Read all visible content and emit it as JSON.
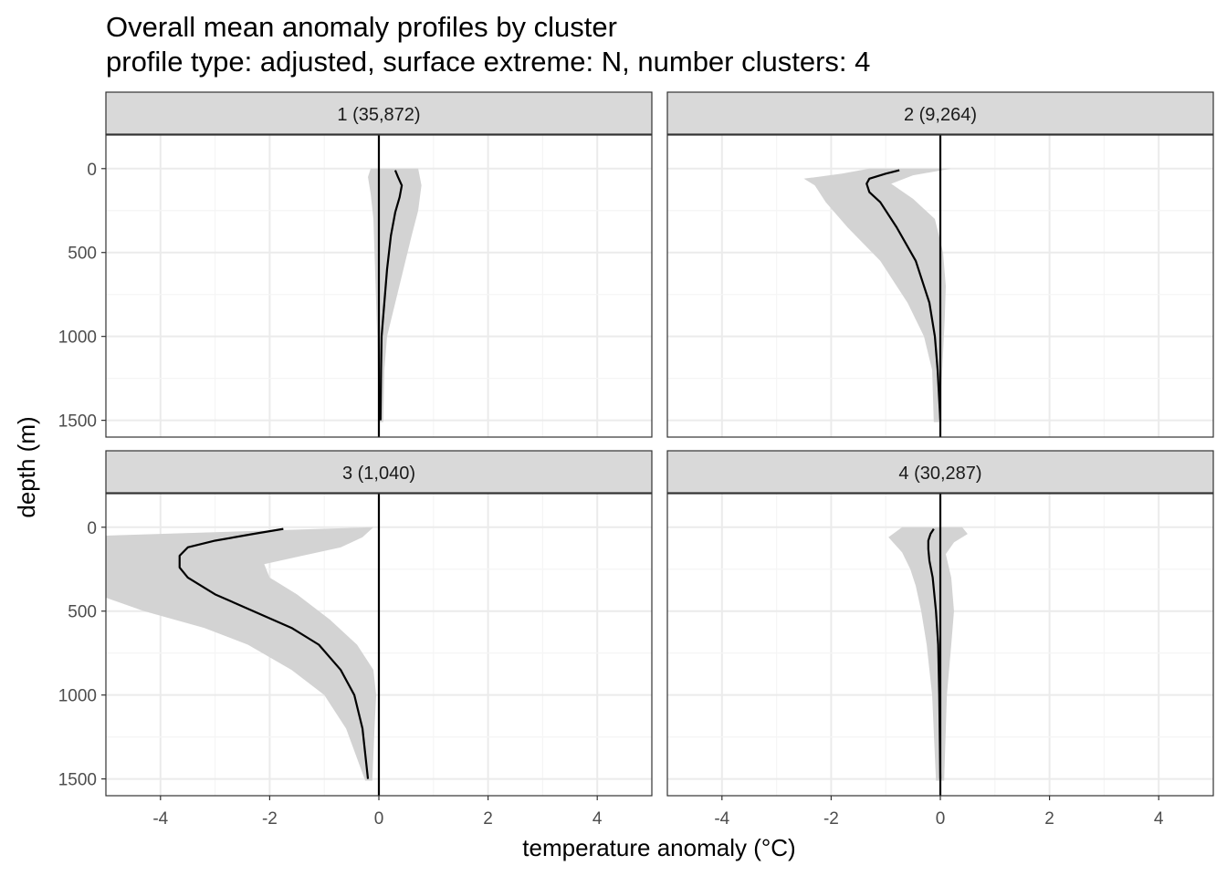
{
  "title": {
    "line1": "Overall mean anomaly profiles by cluster",
    "line2": "profile type: adjusted, surface extreme: N, number clusters: 4"
  },
  "colors": {
    "ribbon": "#d3d3d3",
    "line": "#000000",
    "strip_fill": "#d9d9d9",
    "grid_major": "#ebebeb",
    "grid_minor": "#f5f5f5",
    "panel_border": "#333333"
  },
  "chart_data": {
    "type": "line",
    "facet_layout": "2x2",
    "title": "Overall mean anomaly profiles by cluster",
    "subtitle": "profile type: adjusted, surface extreme: N, number clusters: 4",
    "xlabel": "temperature anomaly (°C)",
    "ylabel": "depth (m)",
    "xlim": [
      -5,
      5
    ],
    "ylim": [
      1600,
      -200
    ],
    "y_reversed": true,
    "x_ticks": [
      -4,
      -2,
      0,
      2,
      4
    ],
    "x_tick_labels": [
      "-4",
      "-2",
      "0",
      "2",
      "4"
    ],
    "y_ticks": [
      0,
      500,
      1000,
      1500
    ],
    "y_tick_labels": [
      "0",
      "500",
      "1000",
      "1500"
    ],
    "reference_line_x": 0,
    "grid": true,
    "panels": [
      {
        "label": "1 (35,872)",
        "mean": [
          [
            0.3,
            10
          ],
          [
            0.35,
            50
          ],
          [
            0.42,
            100
          ],
          [
            0.38,
            170
          ],
          [
            0.3,
            260
          ],
          [
            0.22,
            400
          ],
          [
            0.15,
            600
          ],
          [
            0.1,
            800
          ],
          [
            0.05,
            1000
          ],
          [
            0.04,
            1200
          ],
          [
            0.03,
            1500
          ]
        ],
        "lower": [
          [
            -0.15,
            0
          ],
          [
            -0.2,
            50
          ],
          [
            -0.15,
            150
          ],
          [
            -0.1,
            300
          ],
          [
            -0.08,
            500
          ],
          [
            -0.05,
            800
          ],
          [
            -0.03,
            1000
          ],
          [
            -0.02,
            1200
          ],
          [
            0.0,
            1510
          ]
        ],
        "upper": [
          [
            0.72,
            0
          ],
          [
            0.78,
            100
          ],
          [
            0.72,
            250
          ],
          [
            0.6,
            400
          ],
          [
            0.45,
            600
          ],
          [
            0.3,
            800
          ],
          [
            0.15,
            1000
          ],
          [
            0.1,
            1200
          ],
          [
            0.08,
            1510
          ]
        ]
      },
      {
        "label": "2 (9,264)",
        "mean": [
          [
            -0.75,
            10
          ],
          [
            -1.0,
            30
          ],
          [
            -1.3,
            60
          ],
          [
            -1.35,
            90
          ],
          [
            -1.3,
            140
          ],
          [
            -1.1,
            200
          ],
          [
            -0.8,
            350
          ],
          [
            -0.45,
            550
          ],
          [
            -0.2,
            800
          ],
          [
            -0.1,
            1000
          ],
          [
            -0.05,
            1200
          ],
          [
            0.0,
            1500
          ]
        ],
        "lower": [
          [
            -1.3,
            0
          ],
          [
            -1.8,
            30
          ],
          [
            -2.5,
            60
          ],
          [
            -2.3,
            100
          ],
          [
            -2.1,
            200
          ],
          [
            -1.7,
            350
          ],
          [
            -1.1,
            550
          ],
          [
            -0.6,
            800
          ],
          [
            -0.3,
            1000
          ],
          [
            -0.15,
            1200
          ],
          [
            -0.12,
            1510
          ]
        ],
        "upper": [
          [
            0.2,
            0
          ],
          [
            -0.5,
            40
          ],
          [
            -0.9,
            90
          ],
          [
            -0.5,
            180
          ],
          [
            -0.1,
            300
          ],
          [
            0.05,
            500
          ],
          [
            0.1,
            700
          ],
          [
            0.08,
            900
          ],
          [
            0.05,
            1100
          ],
          [
            0.02,
            1300
          ],
          [
            0.02,
            1510
          ]
        ]
      },
      {
        "label": "3 (1,040)",
        "mean": [
          [
            -1.75,
            10
          ],
          [
            -2.3,
            40
          ],
          [
            -3.0,
            80
          ],
          [
            -3.5,
            120
          ],
          [
            -3.65,
            170
          ],
          [
            -3.65,
            240
          ],
          [
            -3.5,
            300
          ],
          [
            -3.0,
            400
          ],
          [
            -2.3,
            500
          ],
          [
            -1.6,
            600
          ],
          [
            -1.1,
            700
          ],
          [
            -0.7,
            850
          ],
          [
            -0.45,
            1000
          ],
          [
            -0.3,
            1200
          ],
          [
            -0.2,
            1500
          ]
        ],
        "lower": [
          [
            -5.0,
            50
          ],
          [
            -5.0,
            420
          ],
          [
            -4.3,
            500
          ],
          [
            -3.2,
            600
          ],
          [
            -2.4,
            700
          ],
          [
            -1.6,
            850
          ],
          [
            -1.0,
            1000
          ],
          [
            -0.6,
            1200
          ],
          [
            -0.25,
            1510
          ]
        ],
        "upper": [
          [
            -0.1,
            0
          ],
          [
            -0.3,
            60
          ],
          [
            -0.7,
            120
          ],
          [
            -1.4,
            170
          ],
          [
            -2.1,
            220
          ],
          [
            -2.0,
            300
          ],
          [
            -1.5,
            400
          ],
          [
            -0.9,
            550
          ],
          [
            -0.4,
            700
          ],
          [
            -0.1,
            850
          ],
          [
            -0.05,
            1000
          ],
          [
            -0.08,
            1200
          ],
          [
            -0.12,
            1510
          ]
        ]
      },
      {
        "label": "4 (30,287)",
        "mean": [
          [
            -0.12,
            10
          ],
          [
            -0.18,
            40
          ],
          [
            -0.22,
            80
          ],
          [
            -0.22,
            130
          ],
          [
            -0.2,
            200
          ],
          [
            -0.14,
            300
          ],
          [
            -0.08,
            500
          ],
          [
            -0.04,
            700
          ],
          [
            -0.02,
            1000
          ],
          [
            0.0,
            1500
          ]
        ],
        "lower": [
          [
            -0.7,
            0
          ],
          [
            -0.95,
            60
          ],
          [
            -0.7,
            150
          ],
          [
            -0.55,
            250
          ],
          [
            -0.45,
            350
          ],
          [
            -0.35,
            500
          ],
          [
            -0.25,
            700
          ],
          [
            -0.15,
            1000
          ],
          [
            -0.08,
            1510
          ]
        ],
        "upper": [
          [
            0.4,
            0
          ],
          [
            0.5,
            40
          ],
          [
            0.25,
            90
          ],
          [
            0.1,
            160
          ],
          [
            0.2,
            300
          ],
          [
            0.25,
            500
          ],
          [
            0.2,
            700
          ],
          [
            0.12,
            1000
          ],
          [
            0.07,
            1510
          ]
        ]
      }
    ]
  }
}
